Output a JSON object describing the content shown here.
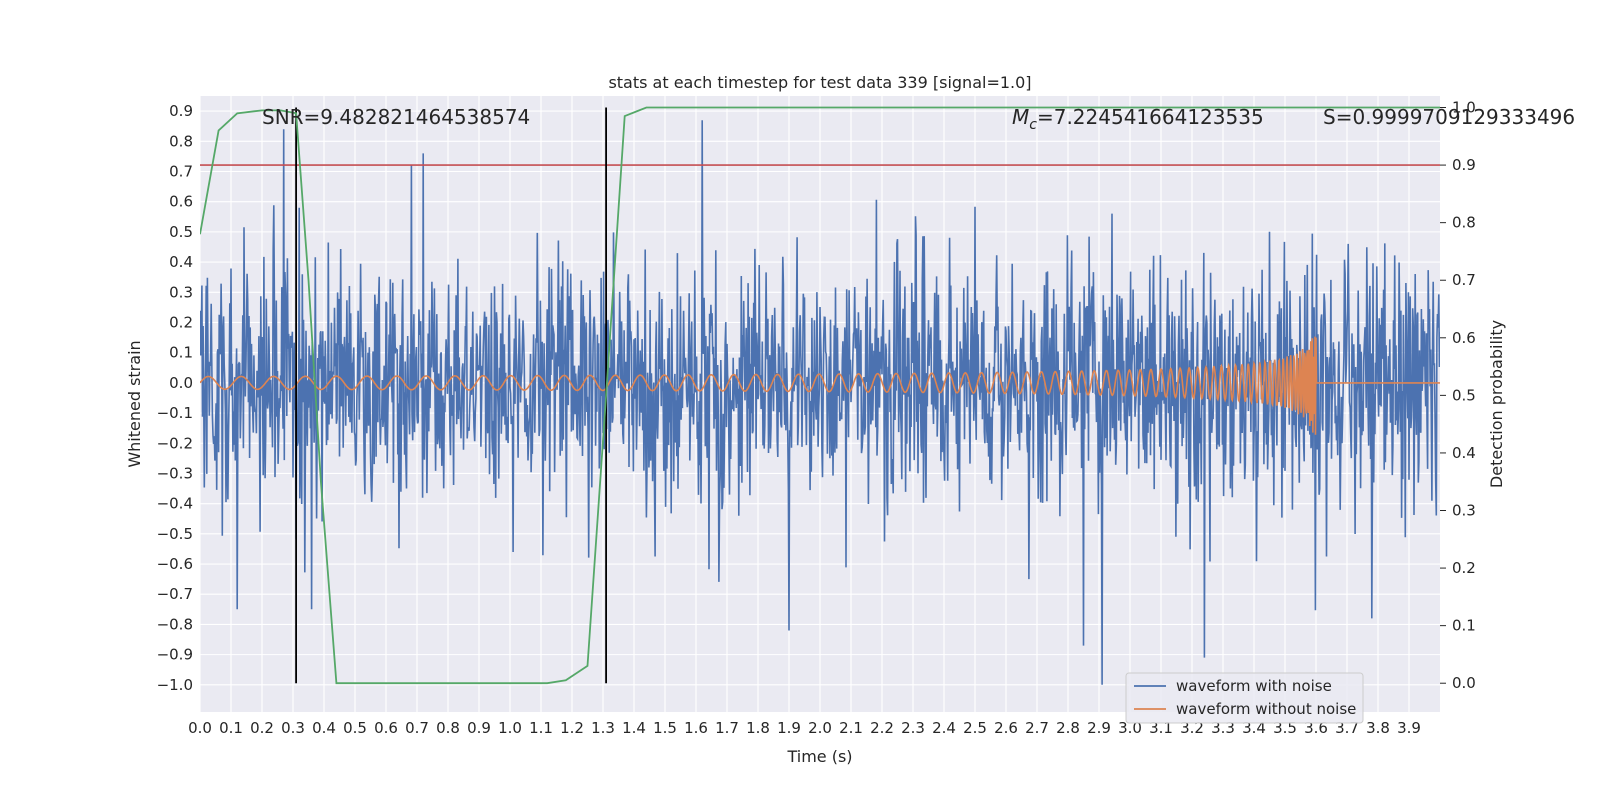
{
  "chart_data": {
    "type": "line",
    "title": "stats at each timestep for test data 339 [signal=1.0]",
    "xlabel": "Time (s)",
    "ylabel": "Whitened strain",
    "y2label": "Detection probability",
    "xlim": [
      0.0,
      4.0
    ],
    "ylim": [
      -1.09,
      0.95
    ],
    "y2lim": [
      -0.05,
      1.02
    ],
    "xticks": [
      "0.0",
      "0.1",
      "0.2",
      "0.3",
      "0.4",
      "0.5",
      "0.6",
      "0.7",
      "0.8",
      "0.9",
      "1.0",
      "1.1",
      "1.2",
      "1.3",
      "1.4",
      "1.5",
      "1.6",
      "1.7",
      "1.8",
      "1.9",
      "2.0",
      "2.1",
      "2.2",
      "2.3",
      "2.4",
      "2.5",
      "2.6",
      "2.7",
      "2.8",
      "2.9",
      "3.0",
      "3.1",
      "3.2",
      "3.3",
      "3.4",
      "3.5",
      "3.6",
      "3.7",
      "3.8",
      "3.9"
    ],
    "yticks": [
      "0.9",
      "0.8",
      "0.7",
      "0.6",
      "0.5",
      "0.4",
      "0.3",
      "0.2",
      "0.1",
      "0.0",
      "−0.1",
      "−0.2",
      "−0.3",
      "−0.4",
      "−0.5",
      "−0.6",
      "−0.7",
      "−0.8",
      "−0.9",
      "−1.0"
    ],
    "y2ticks": [
      "1.0",
      "0.9",
      "0.8",
      "0.7",
      "0.6",
      "0.5",
      "0.4",
      "0.3",
      "0.2",
      "0.1",
      "0.0"
    ],
    "grid": true,
    "legend_position": "lower-right",
    "annotations": {
      "snr": "SNR=9.482821464538574",
      "mc_symbol": "M",
      "mc_sub": "c",
      "mc_value": "=7.224541664123535",
      "s": "S=0.9999709129333496"
    },
    "threshold_probability": 0.9,
    "markers_x": [
      0.31,
      1.31
    ],
    "series": [
      {
        "name": "waveform with noise",
        "color": "#4c72b0",
        "description": "noisy whitened strain, amplitude mostly within ±0.5 with peaks to +0.87 and -1.0",
        "peaks": [
          [
            0.27,
            0.84
          ],
          [
            0.32,
            0.58
          ],
          [
            0.72,
            0.76
          ],
          [
            1.62,
            0.87
          ],
          [
            2.91,
            -1.0
          ],
          [
            3.24,
            -0.91
          ],
          [
            2.85,
            -0.87
          ],
          [
            3.78,
            -0.78
          ],
          [
            1.9,
            -0.82
          ],
          [
            0.12,
            -0.75
          ],
          [
            0.36,
            -0.75
          ]
        ]
      },
      {
        "name": "waveform without noise",
        "color": "#dd8452",
        "description": "chirp: amplitude ~0.02 rising to ~0.24 at merger (t≈3.6 s), then zero"
      },
      {
        "name": "detection probability",
        "color": "#55a868",
        "axis": "right",
        "x": [
          0.0,
          0.06,
          0.12,
          0.2,
          0.26,
          0.31,
          0.35,
          0.39,
          0.44,
          0.6,
          0.8,
          1.0,
          1.12,
          1.18,
          1.25,
          1.31,
          1.37,
          1.44,
          1.6,
          2.0,
          3.0,
          4.0
        ],
        "y": [
          0.78,
          0.96,
          0.99,
          0.995,
          0.995,
          0.99,
          0.7,
          0.35,
          0.0,
          0.0,
          0.0,
          0.0,
          0.0,
          0.005,
          0.03,
          0.5,
          0.985,
          1.0,
          1.0,
          1.0,
          1.0,
          1.0
        ]
      }
    ],
    "colors": {
      "background": "#eaeaf2",
      "grid": "#ffffff",
      "threshold": "#c44e52",
      "marker": "#000000"
    }
  }
}
